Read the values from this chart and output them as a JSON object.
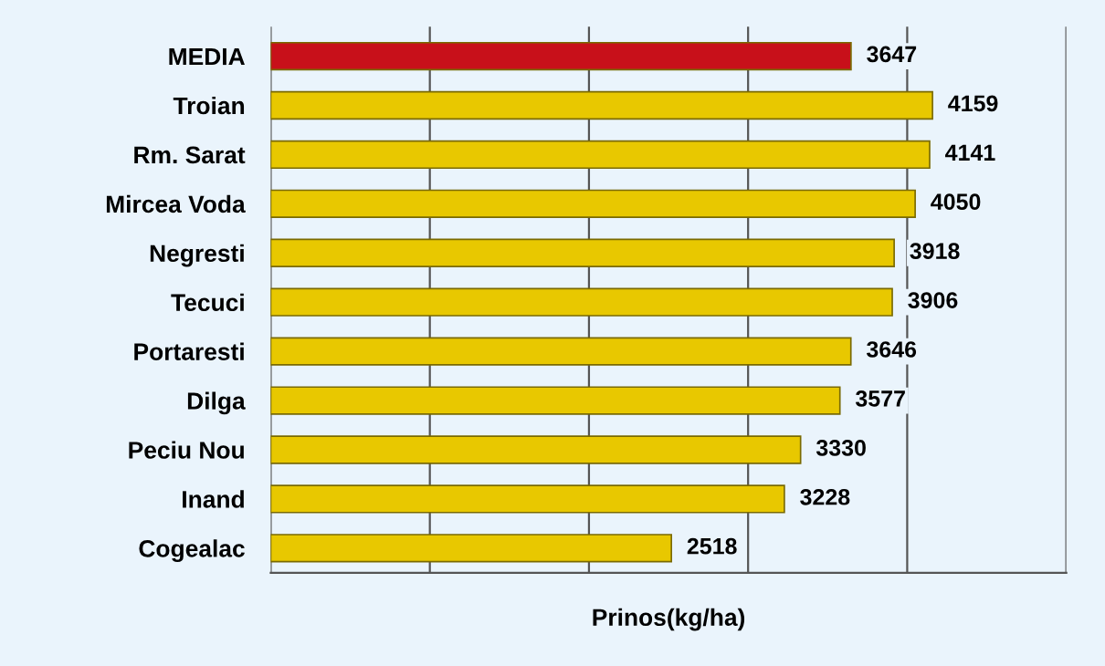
{
  "chart_data": {
    "type": "bar",
    "orientation": "horizontal",
    "xlabel": "Prinos(kg/ha)",
    "categories": [
      "MEDIA",
      "Troian",
      "Rm. Sarat",
      "Mircea Voda",
      "Negresti",
      "Tecuci",
      "Portaresti",
      "Dilga",
      "Peciu Nou",
      "Inand",
      "Cogealac"
    ],
    "values": [
      3647,
      4159,
      4141,
      4050,
      3918,
      3906,
      3646,
      3577,
      3330,
      3228,
      2518
    ],
    "colors": [
      "#c8101a",
      "#e8c800",
      "#e8c800",
      "#e8c800",
      "#e8c800",
      "#e8c800",
      "#e8c800",
      "#e8c800",
      "#e8c800",
      "#e8c800",
      "#e8c800"
    ],
    "xlim": [
      0,
      5000
    ],
    "xticks": [
      {
        "value": 0,
        "label": null
      },
      {
        "value": 1000,
        "label": null
      },
      {
        "value": 2000,
        "label": null
      },
      {
        "value": 3000,
        "label": null
      },
      {
        "value": 4000,
        "label": null
      },
      {
        "value": 5000,
        "label": null
      }
    ],
    "grid": "x",
    "tick_labels": "y",
    "data_labels": true
  }
}
